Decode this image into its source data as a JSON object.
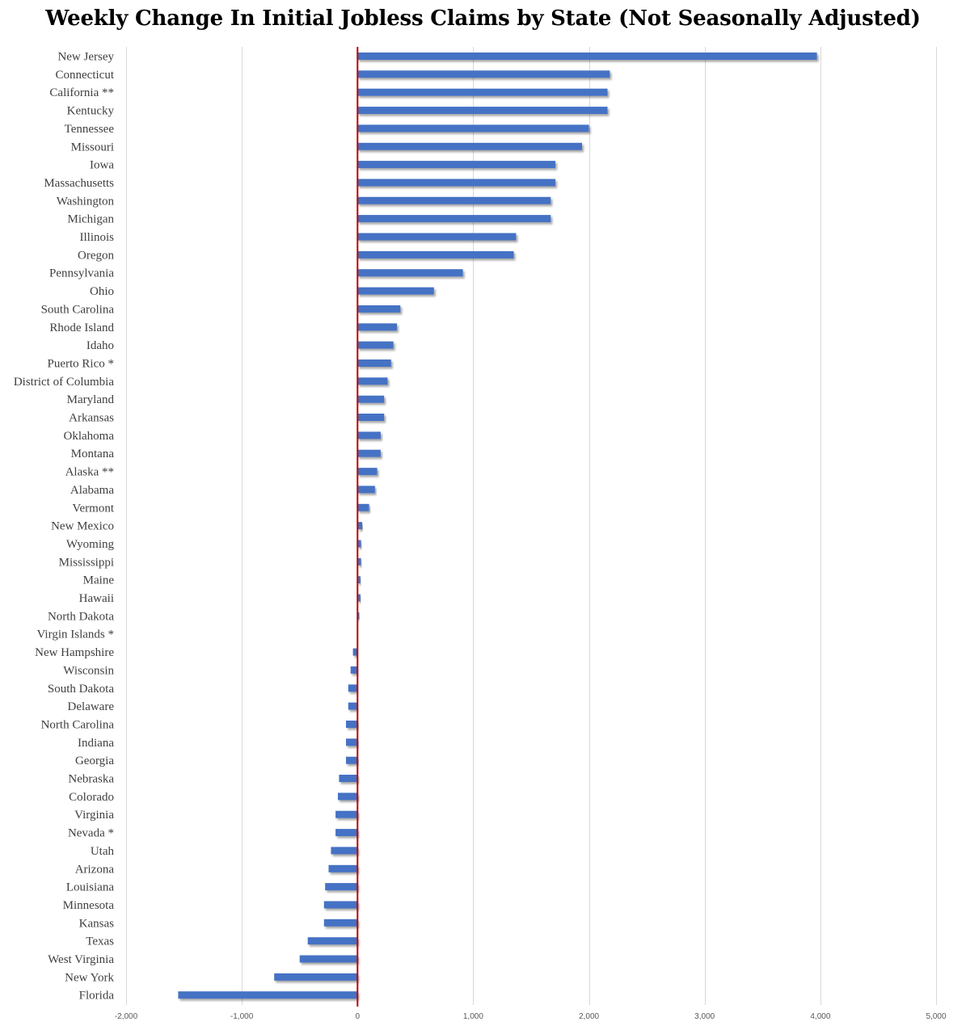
{
  "chart_data": {
    "type": "bar",
    "orientation": "horizontal",
    "title": "Weekly Change In Initial Jobless Claims by State (Not Seasonally Adjusted)",
    "xlabel": "",
    "ylabel": "",
    "xlim": [
      -2000,
      5000
    ],
    "x_ticks": [
      -2000,
      -1000,
      0,
      1000,
      2000,
      3000,
      4000,
      5000
    ],
    "x_tick_labels": [
      "-2,000",
      "-1,000",
      "0",
      "1,000",
      "2,000",
      "3,000",
      "4,000",
      "5,000"
    ],
    "grid": "vertical",
    "zero_line_color": "#c00000",
    "bar_color": "#4472c4",
    "categories": [
      "New Jersey",
      "Connecticut",
      "California **",
      "Kentucky",
      "Tennessee",
      "Missouri",
      "Iowa",
      "Massachusetts",
      "Washington",
      "Michigan",
      "Illinois",
      "Oregon",
      "Pennsylvania",
      "Ohio",
      "South Carolina",
      "Rhode Island",
      "Idaho",
      "Puerto Rico *",
      "District of Columbia",
      "Maryland",
      "Arkansas",
      "Oklahoma",
      "Montana",
      "Alaska **",
      "Alabama",
      "Vermont",
      "New Mexico",
      "Wyoming",
      "Mississippi",
      "Maine",
      "Hawaii",
      "North Dakota",
      "Virgin Islands *",
      "New Hampshire",
      "Wisconsin",
      "South Dakota",
      "Delaware",
      "North Carolina",
      "Indiana",
      "Georgia",
      "Nebraska",
      "Colorado",
      "Virginia",
      "Nevada *",
      "Utah",
      "Arizona",
      "Louisiana",
      "Minnesota",
      "Kansas",
      "Texas",
      "West Virginia",
      "New York",
      "Florida"
    ],
    "values": [
      3970,
      2180,
      2160,
      2160,
      2000,
      1940,
      1710,
      1710,
      1670,
      1670,
      1370,
      1350,
      910,
      660,
      370,
      340,
      310,
      290,
      260,
      230,
      230,
      200,
      200,
      170,
      150,
      100,
      40,
      30,
      30,
      25,
      25,
      15,
      0,
      -40,
      -60,
      -80,
      -80,
      -100,
      -100,
      -100,
      -160,
      -170,
      -190,
      -190,
      -230,
      -250,
      -280,
      -290,
      -290,
      -430,
      -500,
      -720,
      -1550
    ]
  }
}
